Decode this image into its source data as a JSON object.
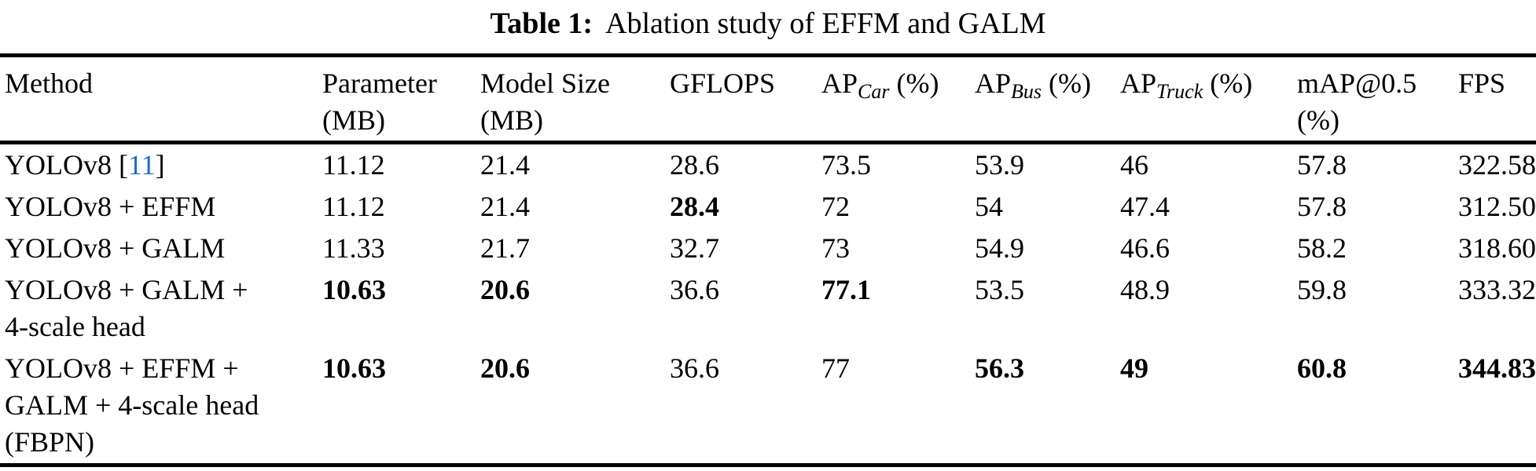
{
  "page": {
    "background": "#ffffff",
    "text_color": "#000000",
    "citation_color": "#1a6fc8"
  },
  "caption": {
    "label": "Table 1:",
    "text": "Ablation study of EFFM and GALM"
  },
  "table": {
    "headers": [
      {
        "key": "method",
        "line1": "Method"
      },
      {
        "key": "parameter",
        "line1": "Parameter",
        "line2": "(MB)"
      },
      {
        "key": "model-size",
        "line1": "Model Size",
        "line2": "(MB)"
      },
      {
        "key": "gflops",
        "line1": "GFLOPS"
      },
      {
        "key": "ap-car",
        "line1": "AP",
        "sub": "Car",
        "suffix": " (%)"
      },
      {
        "key": "ap-bus",
        "line1": "AP",
        "sub": "Bus",
        "suffix": " (%)"
      },
      {
        "key": "ap-truck",
        "line1": "AP",
        "sub": "Truck",
        "suffix": " (%)"
      },
      {
        "key": "map05",
        "line1": "mAP@0.5",
        "line2": "(%)"
      },
      {
        "key": "fps",
        "line1": "FPS"
      }
    ],
    "rows": [
      {
        "method": {
          "prefix": "YOLOv8 [",
          "citation": "11",
          "suffix": "]"
        },
        "values": [
          {
            "v": "11.12",
            "bold": false
          },
          {
            "v": "21.4",
            "bold": false
          },
          {
            "v": "28.6",
            "bold": false
          },
          {
            "v": "73.5",
            "bold": false
          },
          {
            "v": "53.9",
            "bold": false
          },
          {
            "v": "46",
            "bold": false
          },
          {
            "v": "57.8",
            "bold": false
          },
          {
            "v": "322.58",
            "bold": false
          }
        ]
      },
      {
        "method": {
          "lines": [
            "YOLOv8 + EFFM"
          ]
        },
        "values": [
          {
            "v": "11.12",
            "bold": false
          },
          {
            "v": "21.4",
            "bold": false
          },
          {
            "v": "28.4",
            "bold": true
          },
          {
            "v": "72",
            "bold": false
          },
          {
            "v": "54",
            "bold": false
          },
          {
            "v": "47.4",
            "bold": false
          },
          {
            "v": "57.8",
            "bold": false
          },
          {
            "v": "312.50",
            "bold": false
          }
        ]
      },
      {
        "method": {
          "lines": [
            "YOLOv8 + GALM"
          ]
        },
        "values": [
          {
            "v": "11.33",
            "bold": false
          },
          {
            "v": "21.7",
            "bold": false
          },
          {
            "v": "32.7",
            "bold": false
          },
          {
            "v": "73",
            "bold": false
          },
          {
            "v": "54.9",
            "bold": false
          },
          {
            "v": "46.6",
            "bold": false
          },
          {
            "v": "58.2",
            "bold": false
          },
          {
            "v": "318.60",
            "bold": false
          }
        ]
      },
      {
        "method": {
          "lines": [
            "YOLOv8 + GALM +",
            "4-scale head"
          ]
        },
        "values": [
          {
            "v": "10.63",
            "bold": true
          },
          {
            "v": "20.6",
            "bold": true
          },
          {
            "v": "36.6",
            "bold": false
          },
          {
            "v": "77.1",
            "bold": true
          },
          {
            "v": "53.5",
            "bold": false
          },
          {
            "v": "48.9",
            "bold": false
          },
          {
            "v": "59.8",
            "bold": false
          },
          {
            "v": "333.32",
            "bold": false
          }
        ]
      },
      {
        "method": {
          "lines": [
            "YOLOv8 + EFFM +",
            "GALM + 4-scale head",
            "(FBPN)"
          ]
        },
        "values": [
          {
            "v": "10.63",
            "bold": true
          },
          {
            "v": "20.6",
            "bold": true
          },
          {
            "v": "36.6",
            "bold": false
          },
          {
            "v": "77",
            "bold": false
          },
          {
            "v": "56.3",
            "bold": true
          },
          {
            "v": "49",
            "bold": true
          },
          {
            "v": "60.8",
            "bold": true
          },
          {
            "v": "344.83",
            "bold": true
          }
        ]
      }
    ]
  }
}
